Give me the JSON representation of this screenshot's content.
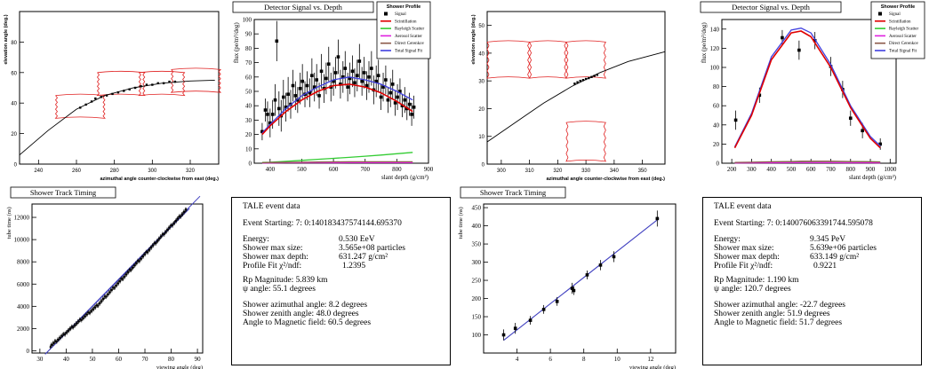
{
  "colors": {
    "track": "#000000",
    "box": "#e02020",
    "fit": "#4040c0",
    "scintillation": "#e00000",
    "rayleigh": "#33cc33",
    "aerosol": "#e020e0",
    "cerenkov": "#8b5a4a",
    "total": "#4040e0"
  },
  "panels": {
    "profile_title": "Detector Signal vs. Depth",
    "timing_title": "Shower Track Timing",
    "legend": {
      "title": "Shower Profile",
      "signal": "Signal",
      "scintillation": "Scintillation",
      "rayleigh": "Rayleigh Scatter",
      "aerosol": "Aerosol Scatter",
      "cerenkov": "Direct Cerenkov",
      "total": "Total Signal Fit"
    }
  },
  "events": [
    {
      "header": "TALE event data",
      "event_starting": "Event Starting: 7: 0:140183437574144.695370",
      "energy_label": "Energy:",
      "energy_value": "0.530 EeV",
      "max_size_label": "Shower max size:",
      "max_size_value": "3.565e+08 particles",
      "max_depth_label": "Shower max depth:",
      "max_depth_value": "631.247 g/cm²",
      "chi2_label": "Profile Fit χ²/ndf:",
      "chi2_value": "1.2395",
      "rp": "Rp Magnitude: 5.839 km",
      "psi": "ψ angle: 55.1 degrees",
      "azimuthal": "Shower azimuthal angle: 8.2 degrees",
      "zenith": "Shower zenith angle: 48.0 degrees",
      "magnetic": "Angle to Magnetic field: 60.5 degrees"
    },
    {
      "header": "TALE event data",
      "event_starting": "Event Starting: 7: 0:140076063391744.595078",
      "energy_label": "Energy:",
      "energy_value": "9.345 PeV",
      "max_size_label": "Shower max size:",
      "max_size_value": "5.639e+06 particles",
      "max_depth_label": "Shower max depth:",
      "max_depth_value": "633.149 g/cm²",
      "chi2_label": "Profile Fit χ²/ndf:",
      "chi2_value": "0.9221",
      "rp": "Rp Magnitude: 1.190 km",
      "psi": "ψ angle: 120.7 degrees",
      "azimuthal": "Shower azimuthal angle: -22.7 degrees",
      "zenith": "Shower zenith angle: 51.9 degrees",
      "magnetic": "Angle to Magnetic field: 51.7 degrees"
    }
  ],
  "chart_data": [
    {
      "id": "sky1",
      "type": "scatter",
      "xlabel": "azimuthal angle counter-clockwise from east (deg.)",
      "ylabel": "elevation angle (deg.)",
      "xlim": [
        230,
        335
      ],
      "ylim": [
        0,
        100
      ],
      "xticks": [
        240,
        260,
        280,
        300,
        320
      ],
      "yticks": [
        0,
        20,
        40,
        60,
        80
      ],
      "track": [
        [
          230,
          6
        ],
        [
          245,
          22
        ],
        [
          260,
          36
        ],
        [
          275,
          45
        ],
        [
          290,
          50
        ],
        [
          305,
          53
        ],
        [
          320,
          54.5
        ],
        [
          333,
          55
        ]
      ],
      "points": [
        [
          262,
          37
        ],
        [
          265,
          39
        ],
        [
          268,
          41
        ],
        [
          270,
          43
        ],
        [
          273,
          44
        ],
        [
          276,
          45
        ],
        [
          279,
          46
        ],
        [
          282,
          47
        ],
        [
          285,
          48
        ],
        [
          288,
          49
        ],
        [
          291,
          50
        ],
        [
          294,
          51
        ],
        [
          297,
          52
        ],
        [
          300,
          52
        ],
        [
          303,
          53
        ],
        [
          306,
          53
        ],
        [
          309,
          54
        ],
        [
          312,
          54
        ]
      ],
      "boxes": [
        {
          "x0": 249,
          "x1": 275,
          "yb": 30,
          "yt": 45
        },
        {
          "x0": 271,
          "x1": 296,
          "yb": 45,
          "yt": 60
        },
        {
          "x0": 293,
          "x1": 317,
          "yb": 45,
          "yt": 60
        },
        {
          "x0": 310,
          "x1": 336,
          "yb": 47,
          "yt": 62
        }
      ]
    },
    {
      "id": "prof1",
      "type": "line",
      "title": "Detector Signal vs. Depth",
      "xlabel": "slant depth (g/cm²)",
      "ylabel": "flux (pe/m²/deg)",
      "xlim": [
        350,
        900
      ],
      "ylim": [
        0,
        100
      ],
      "xticks": [
        400,
        500,
        600,
        700,
        800,
        900
      ],
      "yticks": [
        0,
        10,
        20,
        30,
        40,
        50,
        60,
        70,
        80,
        90,
        100
      ],
      "signal": [
        [
          375,
          22,
          6
        ],
        [
          385,
          37,
          8
        ],
        [
          392,
          34,
          9
        ],
        [
          400,
          28,
          10
        ],
        [
          408,
          34,
          10
        ],
        [
          416,
          44,
          11
        ],
        [
          421,
          85,
          14
        ],
        [
          428,
          38,
          12
        ],
        [
          435,
          33,
          11
        ],
        [
          442,
          46,
          12
        ],
        [
          450,
          39,
          10
        ],
        [
          457,
          48,
          12
        ],
        [
          465,
          41,
          10
        ],
        [
          472,
          54,
          11
        ],
        [
          480,
          47,
          10
        ],
        [
          487,
          44,
          9
        ],
        [
          495,
          52,
          11
        ],
        [
          502,
          57,
          12
        ],
        [
          510,
          48,
          9
        ],
        [
          517,
          54,
          10
        ],
        [
          525,
          49,
          10
        ],
        [
          532,
          61,
          12
        ],
        [
          540,
          53,
          10
        ],
        [
          547,
          58,
          11
        ],
        [
          555,
          47,
          9
        ],
        [
          562,
          64,
          12
        ],
        [
          570,
          52,
          10
        ],
        [
          577,
          59,
          11
        ],
        [
          585,
          69,
          12
        ],
        [
          592,
          53,
          10
        ],
        [
          600,
          57,
          10
        ],
        [
          607,
          63,
          11
        ],
        [
          615,
          74,
          12
        ],
        [
          622,
          55,
          10
        ],
        [
          630,
          60,
          11
        ],
        [
          637,
          66,
          12
        ],
        [
          645,
          53,
          10
        ],
        [
          652,
          59,
          11
        ],
        [
          660,
          64,
          11
        ],
        [
          667,
          56,
          10
        ],
        [
          675,
          61,
          11
        ],
        [
          682,
          71,
          12
        ],
        [
          690,
          57,
          10
        ],
        [
          697,
          63,
          11
        ],
        [
          705,
          54,
          10
        ],
        [
          712,
          60,
          11
        ],
        [
          720,
          66,
          12
        ],
        [
          727,
          51,
          10
        ],
        [
          735,
          57,
          11
        ],
        [
          742,
          61,
          11
        ],
        [
          750,
          46,
          9
        ],
        [
          757,
          53,
          10
        ],
        [
          765,
          58,
          10
        ],
        [
          772,
          44,
          9
        ],
        [
          780,
          49,
          10
        ],
        [
          787,
          55,
          10
        ],
        [
          795,
          42,
          9
        ],
        [
          802,
          46,
          9
        ],
        [
          810,
          50,
          9
        ],
        [
          817,
          40,
          8
        ],
        [
          825,
          44,
          9
        ],
        [
          832,
          38,
          8
        ],
        [
          840,
          41,
          8
        ],
        [
          847,
          34,
          8
        ],
        [
          854,
          39,
          8
        ]
      ],
      "curve_x": [
        375,
        400,
        450,
        500,
        550,
        600,
        650,
        700,
        750,
        800,
        850
      ],
      "scintillation": [
        20,
        26,
        36,
        44,
        50,
        54,
        55,
        53,
        49,
        43,
        36
      ],
      "rayleigh": [
        0.5,
        0.7,
        1.3,
        2.0,
        2.7,
        3.4,
        4.1,
        4.9,
        5.7,
        6.6,
        7.5
      ],
      "aerosol": [
        0.2,
        0.2,
        0.3,
        0.3,
        0.3,
        0.3,
        0.4,
        0.4,
        0.4,
        0.4,
        0.4
      ],
      "cerenkov": [
        0.4,
        0.5,
        0.6,
        0.7,
        0.8,
        0.9,
        1.0,
        1.0,
        1.0,
        1.0,
        1.0
      ],
      "total": [
        21,
        27,
        38,
        47,
        53,
        58,
        60,
        58,
        55,
        50,
        44
      ]
    },
    {
      "id": "time1",
      "type": "scatter",
      "title": "Shower Track Timing",
      "xlabel": "viewing angle (deg)",
      "ylabel": "tube time (ns)",
      "xlim": [
        27,
        92
      ],
      "ylim": [
        -200,
        13200
      ],
      "xticks": [
        30,
        40,
        50,
        60,
        70,
        80,
        90
      ],
      "yticks": [
        0,
        2000,
        4000,
        6000,
        8000,
        10000,
        12000
      ],
      "fit": [
        [
          32,
          -300
        ],
        [
          91,
          13900
        ]
      ],
      "fit2": [
        [
          32,
          -300
        ],
        [
          87,
          12800
        ]
      ]
    },
    {
      "id": "sky2",
      "type": "scatter",
      "xlabel": "azimuthal angle counter-clockwise from east (deg.)",
      "ylabel": "elevation angle (deg.)",
      "xlim": [
        295,
        358
      ],
      "ylim": [
        0,
        55
      ],
      "xticks": [
        300,
        310,
        320,
        330,
        340,
        350
      ],
      "yticks": [
        0,
        10,
        20,
        30,
        40,
        50
      ],
      "track": [
        [
          295,
          8
        ],
        [
          305,
          15
        ],
        [
          315,
          22
        ],
        [
          325,
          28
        ],
        [
          335,
          33
        ],
        [
          345,
          37
        ],
        [
          358,
          40.5
        ]
      ],
      "points": [
        [
          326,
          29
        ],
        [
          327,
          29.5
        ],
        [
          328,
          30
        ],
        [
          329,
          30.3
        ],
        [
          330,
          30.7
        ],
        [
          331,
          31
        ],
        [
          332,
          31.4
        ],
        [
          333,
          31.8
        ],
        [
          334,
          32.2
        ]
      ],
      "boxes": [
        {
          "x0": 295,
          "x1": 310,
          "yb": 31,
          "yt": 44
        },
        {
          "x0": 310,
          "x1": 323,
          "yb": 31,
          "yt": 44
        },
        {
          "x0": 323,
          "x1": 337,
          "yb": 31,
          "yt": 44
        },
        {
          "x0": 323,
          "x1": 337,
          "yb": 1,
          "yt": 15
        }
      ]
    },
    {
      "id": "prof2",
      "type": "line",
      "title": "Detector Signal vs. Depth",
      "xlabel": "slant depth (g/cm²)",
      "ylabel": "flux (pe/m²/deg)",
      "xlim": [
        150,
        1030
      ],
      "ylim": [
        0,
        150
      ],
      "xticks": [
        200,
        300,
        400,
        500,
        600,
        700,
        800,
        900,
        1000
      ],
      "yticks": [
        0,
        20,
        40,
        60,
        80,
        100,
        120,
        140
      ],
      "signal": [
        [
          220,
          45,
          10
        ],
        [
          340,
          71,
          8
        ],
        [
          455,
          131,
          8
        ],
        [
          540,
          118,
          10
        ],
        [
          620,
          128,
          9
        ],
        [
          700,
          101,
          10
        ],
        [
          760,
          77,
          9
        ],
        [
          800,
          47,
          8
        ],
        [
          860,
          34,
          8
        ],
        [
          950,
          20,
          6
        ]
      ],
      "curve_x": [
        215,
        300,
        400,
        500,
        550,
        600,
        700,
        800,
        900,
        950
      ],
      "scintillation": [
        16,
        50,
        108,
        136,
        138,
        132,
        100,
        58,
        26,
        16
      ],
      "rayleigh": [
        0.5,
        0.8,
        1.2,
        1.5,
        1.6,
        1.7,
        1.8,
        1.7,
        1.5,
        1.4
      ],
      "aerosol": [
        0.3,
        0.4,
        0.5,
        0.6,
        0.6,
        0.6,
        0.6,
        0.5,
        0.5,
        0.4
      ],
      "cerenkov": [
        0.8,
        1.0,
        1.5,
        1.8,
        2.0,
        2.0,
        2.0,
        1.8,
        1.5,
        1.3
      ],
      "total": [
        17,
        52,
        111,
        139,
        141,
        136,
        103,
        60,
        28,
        18
      ]
    },
    {
      "id": "time2",
      "type": "scatter",
      "title": "Shower Track Timing",
      "xlabel": "viewing angle (deg)",
      "ylabel": "tube time (ns)",
      "xlim": [
        2,
        13.5
      ],
      "ylim": [
        50,
        460
      ],
      "xticks": [
        4,
        6,
        8,
        10,
        12
      ],
      "yticks": [
        100,
        150,
        200,
        250,
        300,
        350,
        400,
        450
      ],
      "points": [
        [
          3.2,
          100,
          15
        ],
        [
          3.9,
          118,
          15
        ],
        [
          4.8,
          140,
          12
        ],
        [
          5.6,
          170,
          12
        ],
        [
          6.4,
          192,
          12
        ],
        [
          7.3,
          228,
          15
        ],
        [
          7.4,
          222,
          12
        ],
        [
          8.2,
          265,
          12
        ],
        [
          9.0,
          292,
          14
        ],
        [
          9.8,
          315,
          15
        ],
        [
          12.4,
          420,
          22
        ]
      ],
      "fit": [
        [
          3.2,
          85
        ],
        [
          12.5,
          420
        ]
      ]
    }
  ]
}
